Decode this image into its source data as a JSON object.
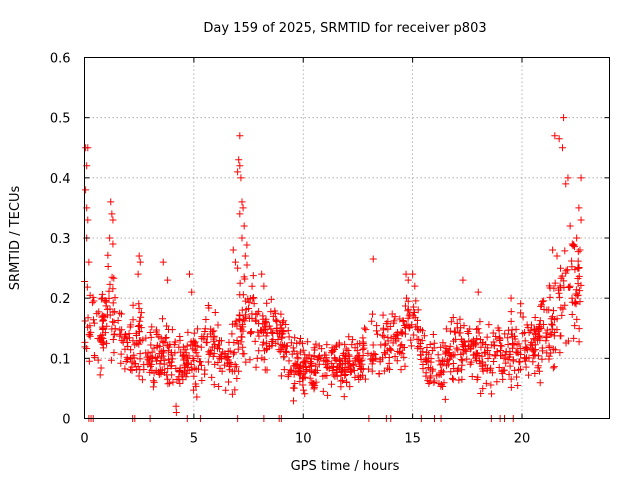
{
  "chart_data": {
    "type": "scatter",
    "title": "Day 159 of 2025, SRMTID for receiver p803",
    "xlabel": "GPS time / hours",
    "ylabel": "SRMTID / TECUs",
    "xlim": [
      0,
      24
    ],
    "ylim": [
      0,
      0.6
    ],
    "xticks": [
      0,
      5,
      10,
      15,
      20
    ],
    "yticks": [
      0,
      0.1,
      0.2,
      0.3,
      0.4,
      0.5,
      0.6
    ],
    "x_tick_labels": [
      "0",
      "5",
      "10",
      "15",
      "20"
    ],
    "y_tick_labels": [
      "0",
      "0.1",
      "0.2",
      "0.3",
      "0.4",
      "0.5",
      "0.6"
    ],
    "grid": true,
    "marker": "+",
    "series_color": "#ff0000",
    "series": [
      {
        "name": "p803",
        "profile": {
          "hours": [
            0,
            0.3,
            0.8,
            1.2,
            1.8,
            2.5,
            3.0,
            3.6,
            4.2,
            4.8,
            5.5,
            6.2,
            6.8,
            7.3,
            8.0,
            8.8,
            9.5,
            10.5,
            11.5,
            12.5,
            13.5,
            14.5,
            15.0,
            15.6,
            16.3,
            17.0,
            17.8,
            18.5,
            19.5,
            20.5,
            21.0,
            21.5,
            22.0,
            22.5,
            22.7
          ],
          "median": [
            0.16,
            0.17,
            0.15,
            0.2,
            0.12,
            0.13,
            0.1,
            0.11,
            0.09,
            0.1,
            0.12,
            0.11,
            0.1,
            0.2,
            0.13,
            0.15,
            0.09,
            0.085,
            0.09,
            0.09,
            0.12,
            0.13,
            0.16,
            0.1,
            0.09,
            0.12,
            0.11,
            0.1,
            0.12,
            0.12,
            0.14,
            0.16,
            0.2,
            0.22,
            0.25
          ],
          "spread": [
            0.06,
            0.07,
            0.05,
            0.08,
            0.05,
            0.05,
            0.045,
            0.05,
            0.05,
            0.05,
            0.05,
            0.05,
            0.05,
            0.08,
            0.05,
            0.05,
            0.04,
            0.035,
            0.035,
            0.04,
            0.045,
            0.045,
            0.05,
            0.04,
            0.04,
            0.045,
            0.045,
            0.045,
            0.045,
            0.05,
            0.05,
            0.06,
            0.08,
            0.09,
            0.09
          ]
        },
        "points": [
          [
            0.05,
            0.45
          ],
          [
            0.1,
            0.42
          ],
          [
            0.15,
            0.45
          ],
          [
            0.05,
            0.38
          ],
          [
            0.1,
            0.35
          ],
          [
            0.15,
            0.33
          ],
          [
            0.1,
            0.3
          ],
          [
            0.2,
            0.26
          ],
          [
            1.2,
            0.36
          ],
          [
            1.25,
            0.34
          ],
          [
            1.3,
            0.33
          ],
          [
            1.15,
            0.3
          ],
          [
            1.3,
            0.29
          ],
          [
            2.5,
            0.27
          ],
          [
            2.55,
            0.26
          ],
          [
            2.45,
            0.24
          ],
          [
            3.6,
            0.26
          ],
          [
            3.8,
            0.23
          ],
          [
            4.2,
            0.01
          ],
          [
            4.8,
            0.24
          ],
          [
            4.9,
            0.21
          ],
          [
            7.1,
            0.47
          ],
          [
            7.05,
            0.43
          ],
          [
            7.1,
            0.42
          ],
          [
            7.15,
            0.4
          ],
          [
            7.0,
            0.41
          ],
          [
            7.2,
            0.36
          ],
          [
            7.25,
            0.35
          ],
          [
            7.1,
            0.34
          ],
          [
            7.3,
            0.32
          ],
          [
            7.2,
            0.3
          ],
          [
            6.8,
            0.28
          ],
          [
            6.9,
            0.26
          ],
          [
            7.0,
            0.25
          ],
          [
            7.35,
            0.27
          ],
          [
            8.1,
            0.24
          ],
          [
            8.2,
            0.22
          ],
          [
            13.2,
            0.265
          ],
          [
            14.7,
            0.24
          ],
          [
            14.8,
            0.23
          ],
          [
            15.0,
            0.24
          ],
          [
            15.1,
            0.22
          ],
          [
            17.3,
            0.23
          ],
          [
            18.0,
            0.21
          ],
          [
            19.5,
            0.2
          ],
          [
            21.5,
            0.47
          ],
          [
            21.7,
            0.465
          ],
          [
            21.9,
            0.5
          ],
          [
            21.85,
            0.45
          ],
          [
            22.1,
            0.4
          ],
          [
            22.0,
            0.39
          ],
          [
            22.7,
            0.4
          ],
          [
            22.6,
            0.35
          ],
          [
            22.7,
            0.33
          ],
          [
            22.2,
            0.32
          ],
          [
            22.5,
            0.3
          ],
          [
            22.3,
            0.29
          ],
          [
            22.65,
            0.28
          ],
          [
            21.4,
            0.28
          ],
          [
            21.6,
            0.27
          ],
          [
            22.6,
            0.25
          ],
          [
            0.2,
            0.0
          ],
          [
            0.3,
            0.0
          ],
          [
            0.4,
            0.0
          ],
          [
            2.2,
            0.0
          ],
          [
            2.3,
            0.0
          ],
          [
            3.0,
            0.0
          ],
          [
            4.7,
            0.0
          ],
          [
            5.3,
            0.0
          ],
          [
            7.0,
            0.0
          ],
          [
            8.2,
            0.0
          ],
          [
            8.9,
            0.0
          ],
          [
            9.0,
            0.0
          ],
          [
            13.0,
            0.0
          ],
          [
            13.8,
            0.0
          ],
          [
            14.0,
            0.0
          ],
          [
            15.4,
            0.0
          ],
          [
            16.0,
            0.0
          ],
          [
            16.3,
            0.0
          ],
          [
            18.6,
            0.0
          ],
          [
            19.0,
            0.0
          ],
          [
            19.2,
            0.0
          ],
          [
            19.6,
            0.0
          ]
        ]
      }
    ]
  }
}
